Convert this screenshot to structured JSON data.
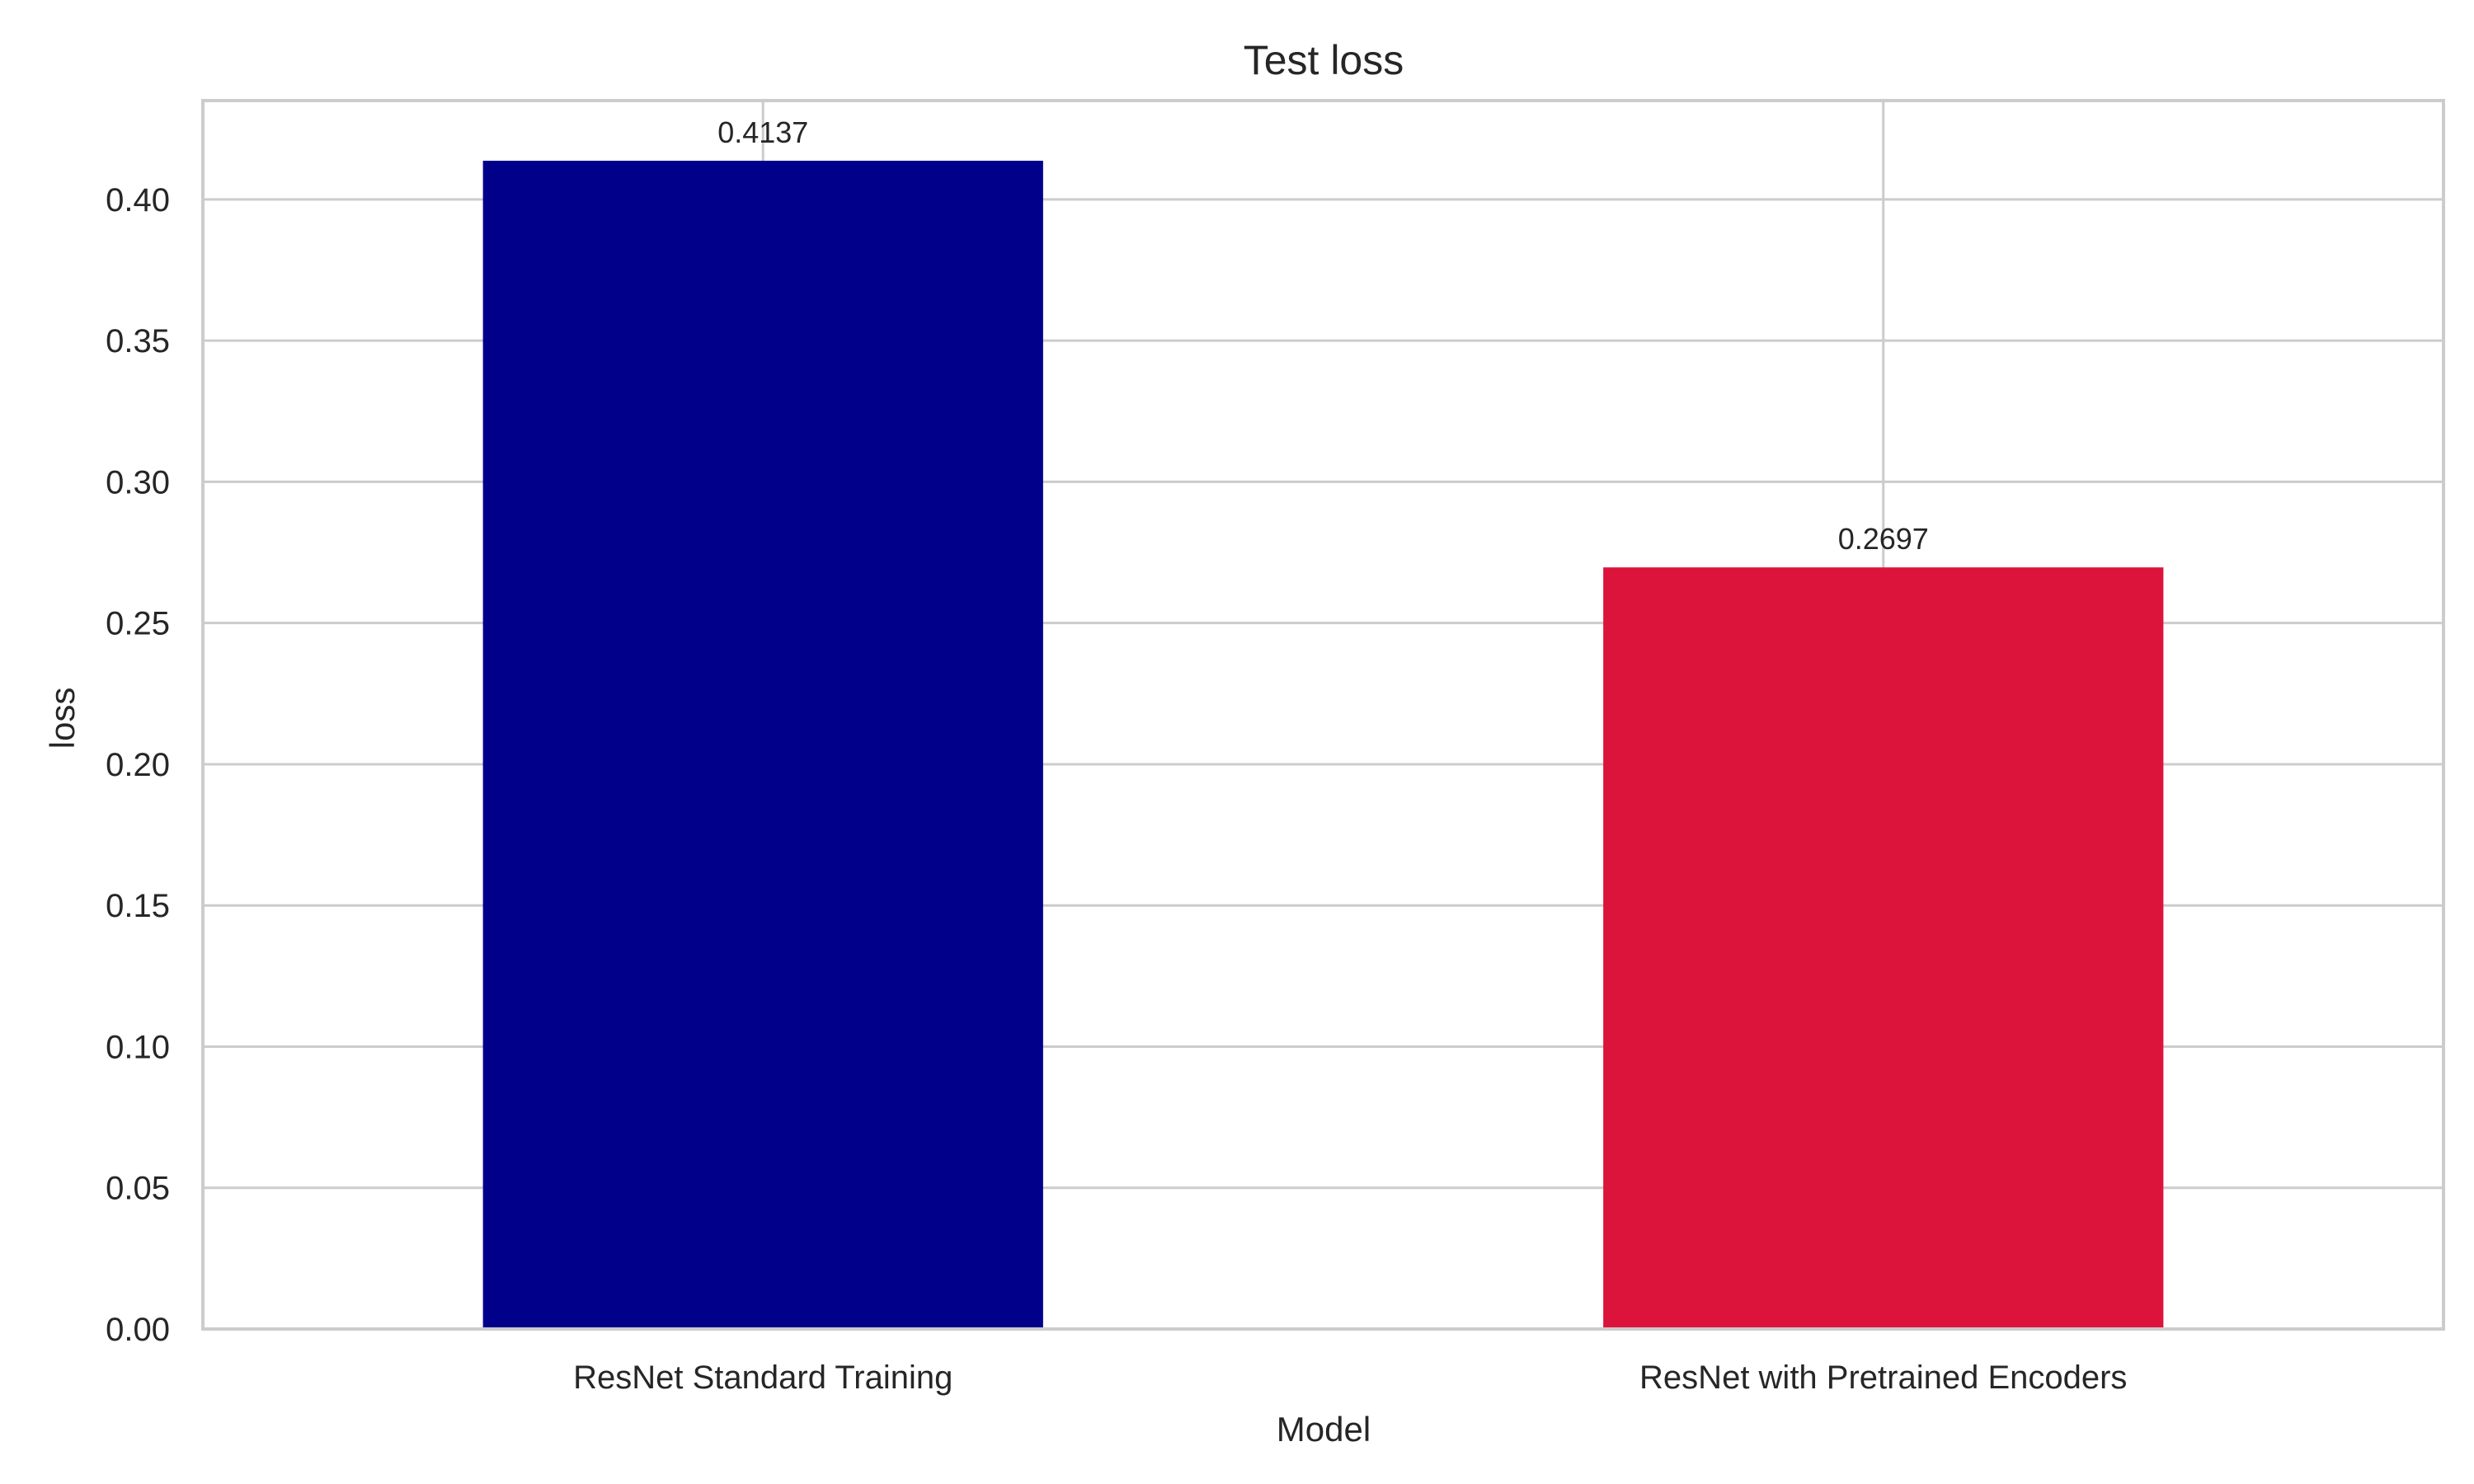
{
  "chart_data": {
    "type": "bar",
    "title": "Test loss",
    "xlabel": "Model",
    "ylabel": "loss",
    "categories": [
      "ResNet Standard Training",
      "ResNet with Pretrained Encoders"
    ],
    "values": [
      0.4137,
      0.2697
    ],
    "value_labels": [
      "0.4137",
      "0.2697"
    ],
    "colors": [
      "#00008b",
      "#dc143c"
    ],
    "ylim": [
      0,
      0.435
    ],
    "yticks": [
      0.0,
      0.05,
      0.1,
      0.15,
      0.2,
      0.25,
      0.3,
      0.35,
      0.4
    ],
    "ytick_labels": [
      "0.00",
      "0.05",
      "0.10",
      "0.15",
      "0.20",
      "0.25",
      "0.30",
      "0.35",
      "0.40"
    ],
    "grid": true,
    "legend": "none"
  }
}
